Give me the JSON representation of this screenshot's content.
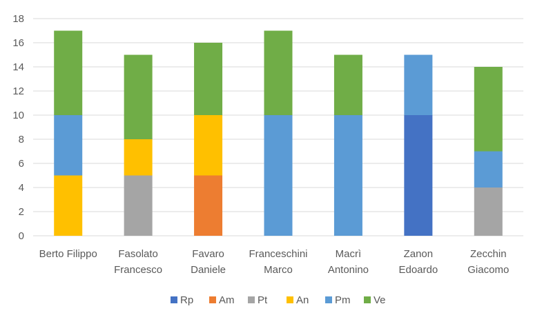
{
  "chart_data": {
    "type": "bar",
    "stacked": true,
    "categories": [
      [
        "Berto Filippo"
      ],
      [
        "Fasolato",
        "Francesco"
      ],
      [
        "Favaro",
        "Daniele"
      ],
      [
        "Franceschini",
        "Marco"
      ],
      [
        "Macrì",
        "Antonino"
      ],
      [
        "Zanon",
        "Edoardo"
      ],
      [
        "Zecchin",
        "Giacomo"
      ]
    ],
    "series": [
      {
        "name": "Rp",
        "color": "#4472C4",
        "values": [
          0,
          0,
          0,
          0,
          0,
          10,
          0
        ]
      },
      {
        "name": "Am",
        "color": "#ED7D31",
        "values": [
          0,
          0,
          5,
          0,
          0,
          0,
          0
        ]
      },
      {
        "name": "Pt",
        "color": "#A5A5A5",
        "values": [
          0,
          5,
          0,
          0,
          0,
          0,
          4
        ]
      },
      {
        "name": "An",
        "color": "#FFC000",
        "values": [
          5,
          3,
          5,
          0,
          0,
          0,
          0
        ]
      },
      {
        "name": "Pm",
        "color": "#5B9BD5",
        "values": [
          5,
          0,
          0,
          10,
          10,
          5,
          3
        ]
      },
      {
        "name": "Ve",
        "color": "#70AD47",
        "values": [
          7,
          7,
          6,
          7,
          5,
          0,
          7
        ]
      }
    ],
    "y_ticks": [
      0,
      2,
      4,
      6,
      8,
      10,
      12,
      14,
      16,
      18
    ],
    "ylim": [
      0,
      18
    ],
    "grid": true,
    "legend_position": "bottom",
    "title": "",
    "xlabel": "",
    "ylabel": ""
  }
}
